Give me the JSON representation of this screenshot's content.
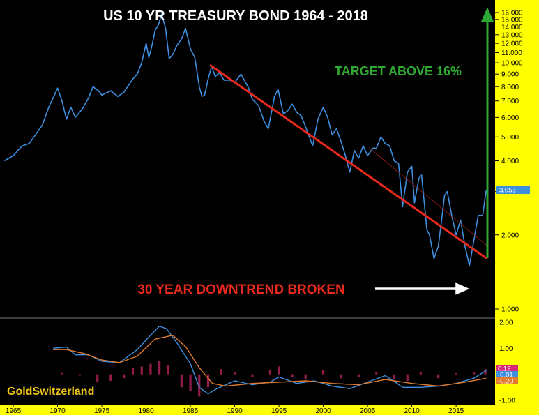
{
  "chart_data": [
    {
      "type": "line",
      "title": "US 10 YR  TREASURY BOND  1964 - 2018",
      "xlabel": "",
      "ylabel": "",
      "xlim": [
        1963.5,
        2019.4
      ],
      "ylim": [
        0.5,
        16.5
      ],
      "y_scale": "log",
      "y_ticks": [
        "1.000",
        "2.000",
        "3.000",
        "4.000",
        "5.000",
        "6.000",
        "7.000",
        "8.000",
        "9.000",
        "10.000",
        "11.000",
        "12.000",
        "13.000",
        "14.000",
        "15.000",
        "16.000"
      ],
      "x_ticks": [
        "1965",
        "1970",
        "1975",
        "1980",
        "1985",
        "1990",
        "1995",
        "2000",
        "2005",
        "2010",
        "2015"
      ],
      "last_value_label": "3.056",
      "grid": false,
      "series": [
        {
          "color": "#3d8fe0",
          "x": [
            1964.0,
            1965.0,
            1966.0,
            1966.8,
            1967.5,
            1968.3,
            1969.0,
            1969.5,
            1970.0,
            1970.5,
            1971.0,
            1971.5,
            1972.0,
            1972.8,
            1973.5,
            1974.0,
            1974.6,
            1975.0,
            1976.0,
            1976.8,
            1977.5,
            1978.5,
            1979.0,
            1979.5,
            1980.0,
            1980.3,
            1980.6,
            1981.0,
            1981.4,
            1981.75,
            1982.2,
            1982.6,
            1983.0,
            1983.5,
            1984.0,
            1984.45,
            1985.0,
            1985.5,
            1986.0,
            1986.3,
            1986.6,
            1987.0,
            1987.4,
            1987.8,
            1988.3,
            1988.8,
            1989.5,
            1990.0,
            1990.7,
            1991.5,
            1992.0,
            1992.7,
            1993.3,
            1993.8,
            1994.5,
            1994.9,
            1995.5,
            1996.0,
            1996.5,
            1997.0,
            1997.5,
            1998.0,
            1998.8,
            1999.4,
            2000.0,
            2000.5,
            2001.0,
            2001.5,
            2002.0,
            2002.5,
            2003.0,
            2003.5,
            2004.0,
            2004.5,
            2005.0,
            2005.6,
            2006.0,
            2006.5,
            2007.0,
            2007.5,
            2008.0,
            2008.5,
            2008.95,
            2009.5,
            2010.0,
            2010.3,
            2010.8,
            2011.1,
            2011.7,
            2012.0,
            2012.5,
            2013.0,
            2013.7,
            2014.0,
            2014.5,
            2015.0,
            2015.5,
            2016.0,
            2016.5,
            2016.9,
            2017.5,
            2018.0,
            2018.4
          ],
          "y": [
            4.0,
            4.2,
            4.6,
            4.7,
            5.1,
            5.6,
            6.6,
            7.2,
            7.9,
            7.0,
            5.9,
            6.6,
            6.0,
            6.5,
            7.2,
            8.0,
            7.7,
            7.4,
            7.7,
            7.3,
            7.6,
            8.6,
            9.0,
            10.0,
            12.0,
            10.5,
            11.5,
            13.5,
            14.3,
            15.8,
            13.8,
            10.4,
            10.8,
            11.8,
            12.5,
            13.8,
            11.4,
            10.5,
            8.0,
            7.3,
            7.4,
            8.6,
            9.7,
            8.8,
            9.1,
            8.5,
            8.5,
            8.3,
            9.0,
            8.0,
            7.1,
            6.7,
            5.8,
            5.4,
            7.3,
            7.8,
            6.2,
            6.4,
            6.8,
            6.3,
            6.1,
            5.5,
            4.6,
            5.9,
            6.6,
            6.0,
            5.1,
            5.4,
            4.8,
            4.2,
            3.6,
            4.4,
            4.1,
            4.6,
            4.2,
            4.5,
            4.5,
            5.0,
            4.7,
            4.6,
            4.0,
            3.9,
            2.6,
            3.6,
            3.8,
            2.7,
            3.4,
            3.5,
            2.1,
            2.0,
            1.6,
            1.8,
            2.9,
            3.0,
            2.4,
            2.0,
            2.3,
            1.8,
            1.5,
            1.8,
            2.4,
            2.4,
            3.05
          ]
        }
      ],
      "annotations": {
        "target_label": "TARGET ABOVE 16%",
        "downtrend_label": "30 YEAR DOWNTREND BROKEN",
        "trendline": {
          "color": "#e8291c",
          "x": [
            1987.2,
            2018.5
          ],
          "y": [
            9.8,
            1.6
          ]
        }
      },
      "colors": {
        "background": "#000000",
        "axis_panel": "#ffff00",
        "price_line": "#3d8fe0",
        "trendline": "#e8291c",
        "target_arrow": "#2fa833",
        "break_arrow": "#ffffff",
        "badge": "#3d8fe0"
      }
    },
    {
      "type": "line",
      "title": "",
      "xlim": [
        1963.5,
        2019.4
      ],
      "ylim": [
        -1.0,
        2.0
      ],
      "y_ticks": [
        "2.00",
        "1.00",
        "-1.00"
      ],
      "value_labels": [
        "0.19",
        "-0.01",
        "-0.20"
      ],
      "series": [
        {
          "color": "#3d8fe0",
          "x": [
            1969.5,
            1971.0,
            1972.0,
            1973.5,
            1975.0,
            1977.0,
            1979.0,
            1980.5,
            1981.5,
            1982.3,
            1983.5,
            1985.0,
            1986.0,
            1987.0,
            1988.0,
            1990.0,
            1992.0,
            1994.0,
            1995.0,
            1997.0,
            1999.0,
            2001.0,
            2003.0,
            2005.0,
            2007.0,
            2009.0,
            2011.0,
            2013.0,
            2015.0,
            2017.0,
            2018.4
          ],
          "y": [
            1.0,
            1.05,
            0.75,
            0.75,
            0.5,
            0.45,
            0.95,
            1.5,
            1.85,
            1.75,
            1.2,
            0.4,
            -0.5,
            -0.75,
            -0.55,
            -0.25,
            -0.4,
            -0.3,
            -0.1,
            -0.35,
            -0.25,
            -0.45,
            -0.55,
            -0.3,
            -0.05,
            -0.5,
            -0.5,
            -0.45,
            -0.35,
            -0.15,
            0.15
          ]
        },
        {
          "color": "#e07a2e",
          "x": [
            1969.5,
            1971.0,
            1973.0,
            1975.0,
            1977.0,
            1979.0,
            1981.0,
            1983.0,
            1984.5,
            1986.0,
            1987.5,
            1989.0,
            1992.0,
            1995.0,
            1998.0,
            2001.0,
            2004.0,
            2007.0,
            2010.0,
            2013.0,
            2016.0,
            2018.4
          ],
          "y": [
            0.95,
            0.95,
            0.8,
            0.55,
            0.45,
            0.7,
            1.35,
            1.5,
            1.05,
            0.25,
            -0.35,
            -0.45,
            -0.35,
            -0.3,
            -0.25,
            -0.35,
            -0.4,
            -0.2,
            -0.35,
            -0.45,
            -0.3,
            -0.15
          ]
        }
      ],
      "histogram": {
        "color": "#b0205a",
        "x": [
          1970.5,
          1972.5,
          1974.5,
          1976.0,
          1977.5,
          1978.5,
          1979.5,
          1980.5,
          1981.5,
          1982.5,
          1984.0,
          1985.0,
          1986.0,
          1987.0,
          1988.5,
          1990.0,
          1992.0,
          1994.0,
          1995.0,
          1996.5,
          1998.0,
          2000.0,
          2002.0,
          2004.0,
          2006.0,
          2008.0,
          2009.5,
          2011.0,
          2013.0,
          2015.0,
          2017.0,
          2018.3
        ],
        "y": [
          0.05,
          -0.05,
          -0.3,
          -0.25,
          -0.15,
          0.25,
          0.3,
          0.4,
          0.5,
          0.35,
          -0.5,
          -0.65,
          -0.85,
          -0.5,
          0.2,
          0.1,
          -0.1,
          0.15,
          0.3,
          -0.1,
          -0.2,
          0.15,
          -0.15,
          -0.1,
          0.1,
          -0.2,
          -0.25,
          0.1,
          -0.15,
          0.05,
          0.1,
          0.2
        ]
      }
    }
  ],
  "brand_text": "GoldSwitzerland"
}
